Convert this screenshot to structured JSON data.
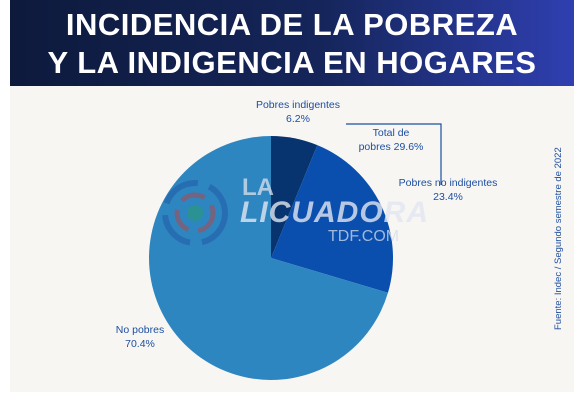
{
  "header": {
    "title_line1": "INCIDENCIA DE LA POBREZA",
    "title_line2": "Y LA INDIGENCIA EN HOGARES"
  },
  "source": "Fuente: Indec / Segundo semestre de 2022",
  "watermark": {
    "brand_top": "LA",
    "brand_main": "LICUADORA",
    "brand_sub": "TDF.COM"
  },
  "colors": {
    "no_pobres": "#2e86c1",
    "pobres_no_indigentes": "#0b4fae",
    "pobres_indigentes": "#07336e",
    "label_text": "#1d4fa0"
  },
  "chart_data": {
    "type": "pie",
    "title": "INCIDENCIA DE LA POBREZA Y LA INDIGENCIA EN HOGARES",
    "slices": [
      {
        "label": "Pobres indigentes",
        "value": 6.2,
        "value_label": "6.2%"
      },
      {
        "label": "Pobres no indigentes",
        "value": 23.4,
        "value_label": "23.4%"
      },
      {
        "label": "No pobres",
        "value": 70.4,
        "value_label": "70.4%"
      }
    ],
    "total_annotation": {
      "label_line1": "Total de",
      "label_line2": "pobres 29.6%",
      "value": 29.6
    }
  }
}
